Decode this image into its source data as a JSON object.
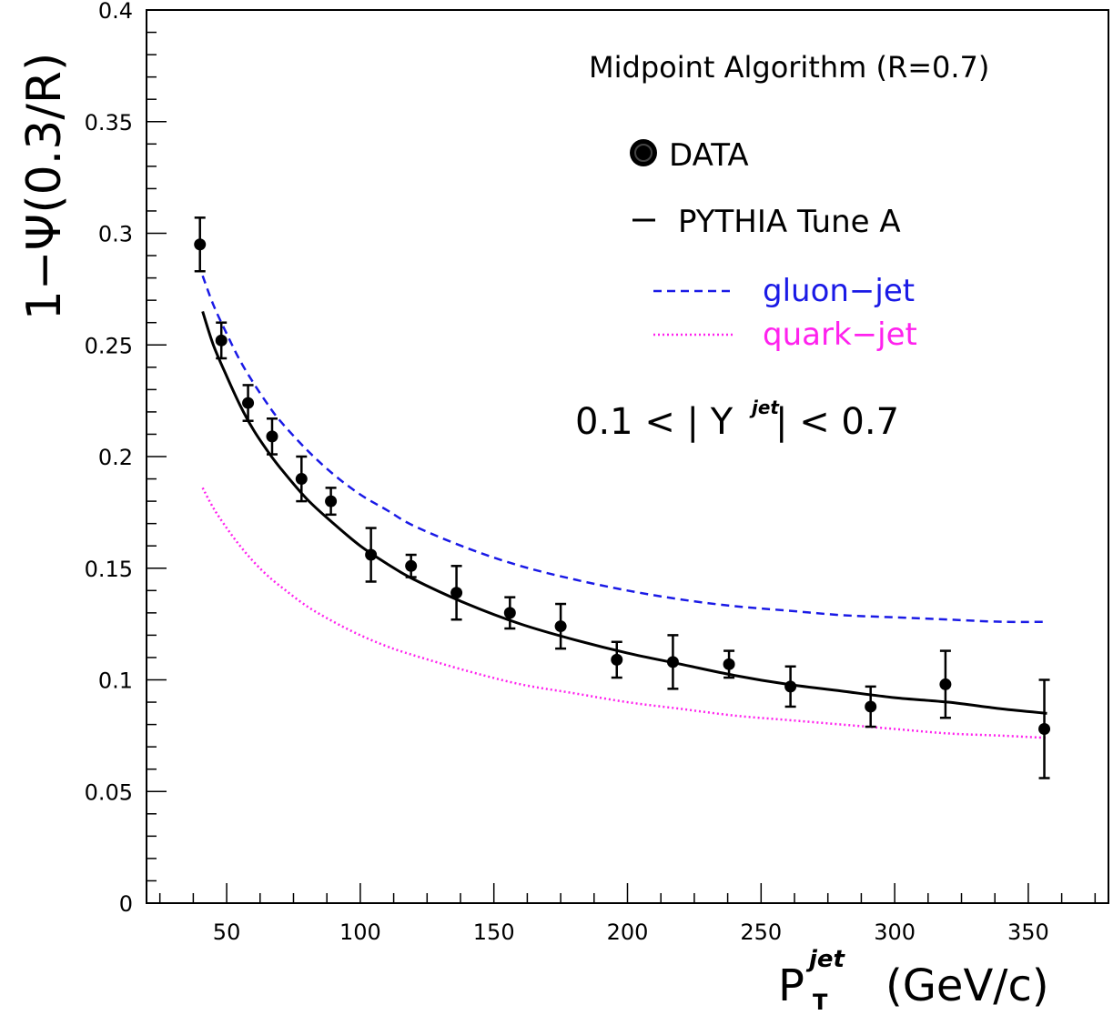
{
  "chart_data": {
    "type": "scatter",
    "title": "",
    "ylabel": "1−Ψ(0.3/R)",
    "xlabel": {
      "main": "P",
      "superscript": "jet",
      "subscript": "T",
      "unit": "(GeV/c)"
    },
    "xlim": [
      20,
      380
    ],
    "ylim": [
      0,
      0.4
    ],
    "x_ticks": [
      50,
      100,
      150,
      200,
      250,
      300,
      350
    ],
    "y_ticks": [
      0,
      0.05,
      0.1,
      0.15,
      0.2,
      0.25,
      0.3,
      0.35,
      0.4
    ],
    "x_tick_labels": [
      "50",
      "100",
      "150",
      "200",
      "250",
      "300",
      "350"
    ],
    "y_tick_labels": [
      "0",
      "0.05",
      "0.1",
      "0.15",
      "0.2",
      "0.25",
      "0.3",
      "0.35",
      "0.4"
    ],
    "grid": false,
    "legend_position": "top-right",
    "annotations": {
      "algorithm": "Midpoint Algorithm (R=0.7)",
      "rapidity_range": {
        "prefix": "0.1 < | Y",
        "superscript": "jet",
        "suffix": " | < 0.7"
      }
    },
    "series": [
      {
        "name": "DATA",
        "kind": "points_with_errors",
        "color": "#000000",
        "points": [
          {
            "x": 40,
            "y": 0.295,
            "err": 0.012
          },
          {
            "x": 48,
            "y": 0.252,
            "err": 0.008
          },
          {
            "x": 58,
            "y": 0.224,
            "err": 0.008
          },
          {
            "x": 67,
            "y": 0.209,
            "err": 0.008
          },
          {
            "x": 78,
            "y": 0.19,
            "err": 0.01
          },
          {
            "x": 89,
            "y": 0.18,
            "err": 0.006
          },
          {
            "x": 104,
            "y": 0.156,
            "err": 0.012
          },
          {
            "x": 119,
            "y": 0.151,
            "err": 0.005
          },
          {
            "x": 136,
            "y": 0.139,
            "err": 0.012
          },
          {
            "x": 156,
            "y": 0.13,
            "err": 0.007
          },
          {
            "x": 175,
            "y": 0.124,
            "err": 0.01
          },
          {
            "x": 196,
            "y": 0.109,
            "err": 0.008
          },
          {
            "x": 217,
            "y": 0.108,
            "err": 0.012
          },
          {
            "x": 238,
            "y": 0.107,
            "err": 0.006
          },
          {
            "x": 261,
            "y": 0.097,
            "err": 0.009
          },
          {
            "x": 291,
            "y": 0.088,
            "err": 0.009
          },
          {
            "x": 319,
            "y": 0.098,
            "err": 0.015
          },
          {
            "x": 356,
            "y": 0.078,
            "err": 0.022
          }
        ]
      },
      {
        "name": "PYTHIA Tune A",
        "kind": "solid_line",
        "color": "#000000",
        "x": [
          41,
          45,
          50,
          55,
          60,
          65,
          70,
          80,
          90,
          100,
          110,
          120,
          140,
          160,
          180,
          200,
          220,
          240,
          260,
          280,
          300,
          320,
          340,
          357
        ],
        "y": [
          0.265,
          0.25,
          0.236,
          0.223,
          0.212,
          0.203,
          0.195,
          0.181,
          0.17,
          0.16,
          0.152,
          0.145,
          0.134,
          0.125,
          0.118,
          0.112,
          0.107,
          0.102,
          0.098,
          0.095,
          0.092,
          0.09,
          0.087,
          0.085
        ]
      },
      {
        "name": "gluon-jet",
        "kind": "dashed_line",
        "color": "#1a1ae6",
        "x": [
          41,
          45,
          50,
          55,
          60,
          65,
          70,
          80,
          90,
          100,
          110,
          120,
          140,
          160,
          180,
          200,
          220,
          240,
          260,
          280,
          300,
          320,
          340,
          357
        ],
        "y": [
          0.281,
          0.268,
          0.255,
          0.243,
          0.233,
          0.224,
          0.216,
          0.203,
          0.192,
          0.183,
          0.176,
          0.169,
          0.159,
          0.151,
          0.145,
          0.14,
          0.136,
          0.133,
          0.131,
          0.129,
          0.128,
          0.127,
          0.126,
          0.126
        ]
      },
      {
        "name": "quark-jet",
        "kind": "dotted_line",
        "color": "#ff22ee",
        "x": [
          41,
          45,
          50,
          55,
          60,
          65,
          70,
          80,
          90,
          100,
          110,
          120,
          140,
          160,
          180,
          200,
          220,
          240,
          260,
          280,
          300,
          320,
          340,
          357
        ],
        "y": [
          0.186,
          0.177,
          0.168,
          0.16,
          0.153,
          0.147,
          0.142,
          0.133,
          0.126,
          0.12,
          0.115,
          0.111,
          0.104,
          0.098,
          0.094,
          0.09,
          0.087,
          0.084,
          0.082,
          0.08,
          0.078,
          0.076,
          0.075,
          0.074
        ]
      }
    ]
  },
  "legend": {
    "data_label": "DATA",
    "pythia_label": "PYTHIA Tune A",
    "gluon_label": "gluon−jet",
    "quark_label": "quark−jet",
    "gluon_color": "#1a1ae6",
    "quark_color": "#ff22ee"
  }
}
